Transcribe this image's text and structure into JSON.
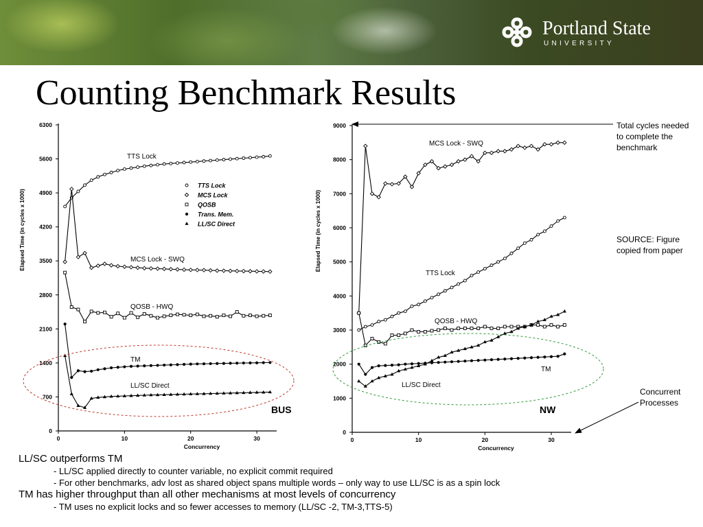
{
  "header": {
    "logo_name": "Portland State",
    "logo_sub": "UNIVERSITY"
  },
  "slide": {
    "title": "Counting Benchmark Results"
  },
  "annotations": {
    "total_cycles": "Total cycles needed to complete the benchmark",
    "source": "SOURCE: Figure copied from paper",
    "concurrent": "Concurrent Processes"
  },
  "bullets": [
    {
      "level": 1,
      "text": "LL/SC outperforms TM"
    },
    {
      "level": 2,
      "text": "- LL/SC applied directly to counter variable, no explicit commit required"
    },
    {
      "level": 2,
      "text": "- For other benchmarks, adv lost as shared object spans multiple words – only way to use LL/SC is as a spin lock"
    },
    {
      "level": 1,
      "text": "TM has higher throughput than all other mechanisms at most levels of concurrency"
    },
    {
      "level": 2,
      "text": "- TM uses no explicit locks and so fewer accesses to memory (LL/SC -2, TM-3,TTS-5)"
    }
  ],
  "chart_data": [
    {
      "type": "line",
      "label": "BUS",
      "xlabel": "Concurrency",
      "ylabel": "Elapsed Time (in cycles x 1000)",
      "xlim": [
        0,
        33
      ],
      "ylim": [
        0,
        6300
      ],
      "xticks": [
        0,
        10,
        20,
        30
      ],
      "yticks": [
        0,
        700,
        1400,
        2100,
        2800,
        3500,
        4200,
        4900,
        5600,
        6300
      ],
      "legend": [
        "TTS Lock",
        "MCS Lock",
        "QOSB",
        "Trans. Mem.",
        "LL/SC Direct"
      ],
      "x": [
        1,
        2,
        3,
        4,
        5,
        6,
        7,
        8,
        9,
        10,
        11,
        12,
        13,
        14,
        15,
        16,
        17,
        18,
        19,
        20,
        21,
        22,
        23,
        24,
        25,
        26,
        27,
        28,
        29,
        30,
        31,
        32
      ],
      "series": [
        {
          "name": "TTS Lock",
          "label": "TTS Lock",
          "marker": "circle-open",
          "values": [
            4620,
            4800,
            4930,
            5060,
            5160,
            5230,
            5280,
            5320,
            5360,
            5390,
            5410,
            5430,
            5450,
            5465,
            5480,
            5495,
            5505,
            5515,
            5525,
            5535,
            5545,
            5555,
            5565,
            5575,
            5585,
            5595,
            5605,
            5615,
            5625,
            5635,
            5645,
            5660
          ]
        },
        {
          "name": "MCS Lock",
          "label": "MCS Lock - SWQ",
          "marker": "diamond-open",
          "values": [
            3480,
            4980,
            3580,
            3660,
            3360,
            3400,
            3440,
            3410,
            3390,
            3380,
            3370,
            3360,
            3350,
            3345,
            3340,
            3335,
            3330,
            3325,
            3320,
            3315,
            3312,
            3310,
            3305,
            3300,
            3298,
            3295,
            3292,
            3290,
            3288,
            3285,
            3283,
            3280
          ]
        },
        {
          "name": "QOSB",
          "label": "QOSB - HWQ",
          "marker": "square-open",
          "values": [
            3260,
            2550,
            2500,
            2250,
            2460,
            2430,
            2440,
            2350,
            2420,
            2330,
            2430,
            2340,
            2410,
            2370,
            2330,
            2360,
            2380,
            2400,
            2390,
            2380,
            2400,
            2360,
            2370,
            2350,
            2380,
            2360,
            2450,
            2370,
            2380,
            2360,
            2370,
            2380
          ]
        },
        {
          "name": "Trans. Mem.",
          "label": "TM",
          "marker": "circle-filled",
          "values": [
            2200,
            1100,
            1240,
            1220,
            1230,
            1260,
            1280,
            1300,
            1310,
            1320,
            1330,
            1335,
            1340,
            1345,
            1350,
            1355,
            1360,
            1365,
            1370,
            1375,
            1380,
            1382,
            1385,
            1388,
            1390,
            1393,
            1395,
            1398,
            1400,
            1402,
            1405,
            1408
          ]
        },
        {
          "name": "LL/SC Direct",
          "label": "LL/SC Direct",
          "marker": "triangle-filled",
          "values": [
            1550,
            760,
            520,
            480,
            670,
            690,
            700,
            710,
            715,
            720,
            725,
            730,
            735,
            740,
            743,
            746,
            750,
            753,
            756,
            760,
            763,
            766,
            770,
            773,
            776,
            780,
            783,
            786,
            790,
            793,
            796,
            800
          ]
        }
      ]
    },
    {
      "type": "line",
      "label": "NW",
      "xlabel": "Concurrency",
      "ylabel": "Elapsed Time (in cycles x 1000)",
      "xlim": [
        0,
        33
      ],
      "ylim": [
        0,
        9000
      ],
      "xticks": [
        0,
        10,
        20,
        30
      ],
      "yticks": [
        0,
        1000,
        2000,
        3000,
        4000,
        5000,
        6000,
        7000,
        8000,
        9000
      ],
      "x": [
        1,
        2,
        3,
        4,
        5,
        6,
        7,
        8,
        9,
        10,
        11,
        12,
        13,
        14,
        15,
        16,
        17,
        18,
        19,
        20,
        21,
        22,
        23,
        24,
        25,
        26,
        27,
        28,
        29,
        30,
        31,
        32
      ],
      "series": [
        {
          "name": "MCS Lock",
          "label": "MCS Lock - SWQ",
          "marker": "diamond-open",
          "values": [
            3500,
            8400,
            7000,
            6900,
            7300,
            7280,
            7300,
            7500,
            7200,
            7600,
            7850,
            7950,
            7750,
            7800,
            7850,
            7950,
            8000,
            8100,
            7950,
            8200,
            8200,
            8250,
            8250,
            8300,
            8400,
            8350,
            8400,
            8300,
            8450,
            8450,
            8500,
            8500
          ]
        },
        {
          "name": "TTS Lock",
          "label": "TTS Lock",
          "marker": "circle-open",
          "values": [
            3000,
            3100,
            3150,
            3250,
            3300,
            3400,
            3500,
            3550,
            3700,
            3750,
            3850,
            3950,
            4050,
            4150,
            4250,
            4350,
            4450,
            4600,
            4700,
            4800,
            4900,
            5000,
            5100,
            5250,
            5400,
            5550,
            5650,
            5800,
            5900,
            6050,
            6200,
            6300
          ]
        },
        {
          "name": "QOSB",
          "label": "QOSB - HWQ",
          "marker": "square-open",
          "values": [
            3500,
            2550,
            2750,
            2650,
            2600,
            2850,
            2850,
            2900,
            3000,
            2950,
            2950,
            2980,
            3000,
            3050,
            3000,
            3050,
            3050,
            3050,
            3050,
            3100,
            3050,
            3050,
            3100,
            3100,
            3100,
            3100,
            3150,
            3150,
            3100,
            3150,
            3100,
            3150
          ]
        },
        {
          "name": "Trans. Mem.",
          "label": "TM",
          "marker": "circle-filled",
          "values": [
            2000,
            1700,
            1900,
            1950,
            1960,
            1970,
            1980,
            2000,
            2010,
            2020,
            2030,
            2040,
            2050,
            2060,
            2070,
            2080,
            2090,
            2100,
            2110,
            2120,
            2130,
            2140,
            2150,
            2160,
            2170,
            2180,
            2190,
            2200,
            2210,
            2220,
            2230,
            2300
          ]
        },
        {
          "name": "LL/SC Direct",
          "label": "LL/SC Direct",
          "marker": "triangle-filled",
          "values": [
            1500,
            1350,
            1500,
            1600,
            1650,
            1700,
            1800,
            1850,
            1900,
            1950,
            2000,
            2100,
            2200,
            2250,
            2350,
            2400,
            2450,
            2500,
            2550,
            2650,
            2700,
            2800,
            2900,
            2950,
            3050,
            3100,
            3150,
            3250,
            3300,
            3400,
            3450,
            3550
          ]
        }
      ]
    }
  ]
}
